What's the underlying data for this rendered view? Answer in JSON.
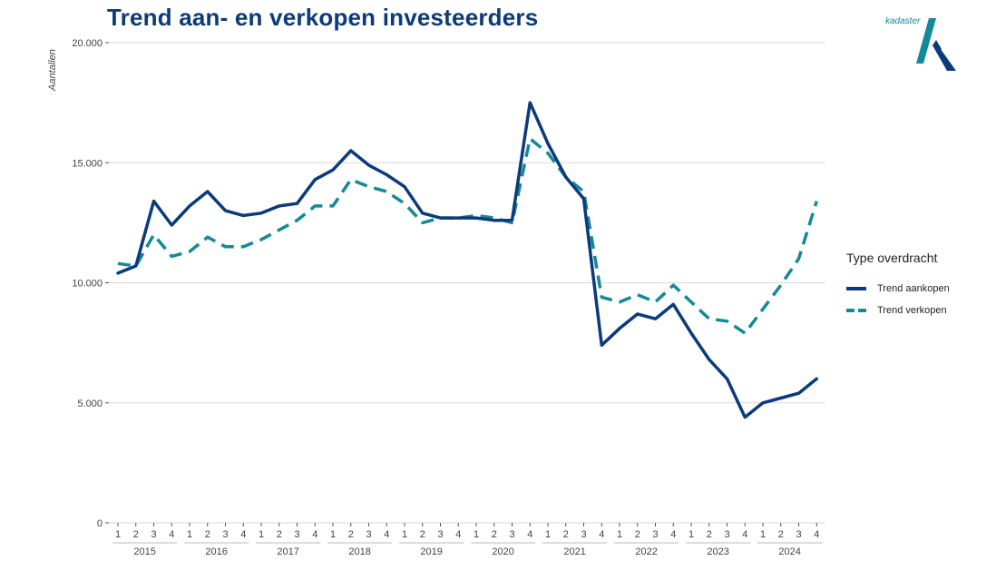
{
  "chart_data": {
    "type": "line",
    "title": "Trend aan- en verkopen investeerders",
    "ylabel": "Aantallen",
    "ylim": [
      0,
      20000
    ],
    "yticks": [
      0,
      5000,
      10000,
      15000,
      20000
    ],
    "ytick_labels": [
      "0",
      "5.000",
      "10.000",
      "15.000",
      "20.000"
    ],
    "quarters": [
      "1",
      "2",
      "3",
      "4"
    ],
    "years": [
      "2015",
      "2016",
      "2017",
      "2018",
      "2019",
      "2020",
      "2021",
      "2022",
      "2023",
      "2024"
    ],
    "legend_title": "Type overdracht",
    "legend_position": "right",
    "grid": true,
    "series": [
      {
        "name": "Trend aankopen",
        "color": "#0b3b7a",
        "style": "solid",
        "values": [
          10400,
          10700,
          13400,
          12400,
          13200,
          13800,
          13000,
          12800,
          12900,
          13200,
          13300,
          14300,
          14700,
          15500,
          14900,
          14500,
          14000,
          12900,
          12700,
          12700,
          12700,
          12600,
          12600,
          17500,
          15800,
          14400,
          13500,
          7400,
          8100,
          8700,
          8500,
          9100,
          7900,
          6800,
          6000,
          4400,
          5000,
          5200,
          5400,
          6000
        ]
      },
      {
        "name": "Trend verkopen",
        "color": "#148a97",
        "style": "dashed",
        "values": [
          10800,
          10700,
          12000,
          11100,
          11300,
          11900,
          11500,
          11500,
          11800,
          12200,
          12600,
          13200,
          13200,
          14300,
          14000,
          13800,
          13300,
          12500,
          12700,
          12700,
          12800,
          12700,
          12500,
          16000,
          15400,
          14400,
          13800,
          9400,
          9200,
          9500,
          9200,
          9900,
          9200,
          8500,
          8400,
          7900,
          8900,
          9900,
          11000,
          13400
        ]
      }
    ]
  },
  "logo": {
    "text": "kadaster"
  }
}
